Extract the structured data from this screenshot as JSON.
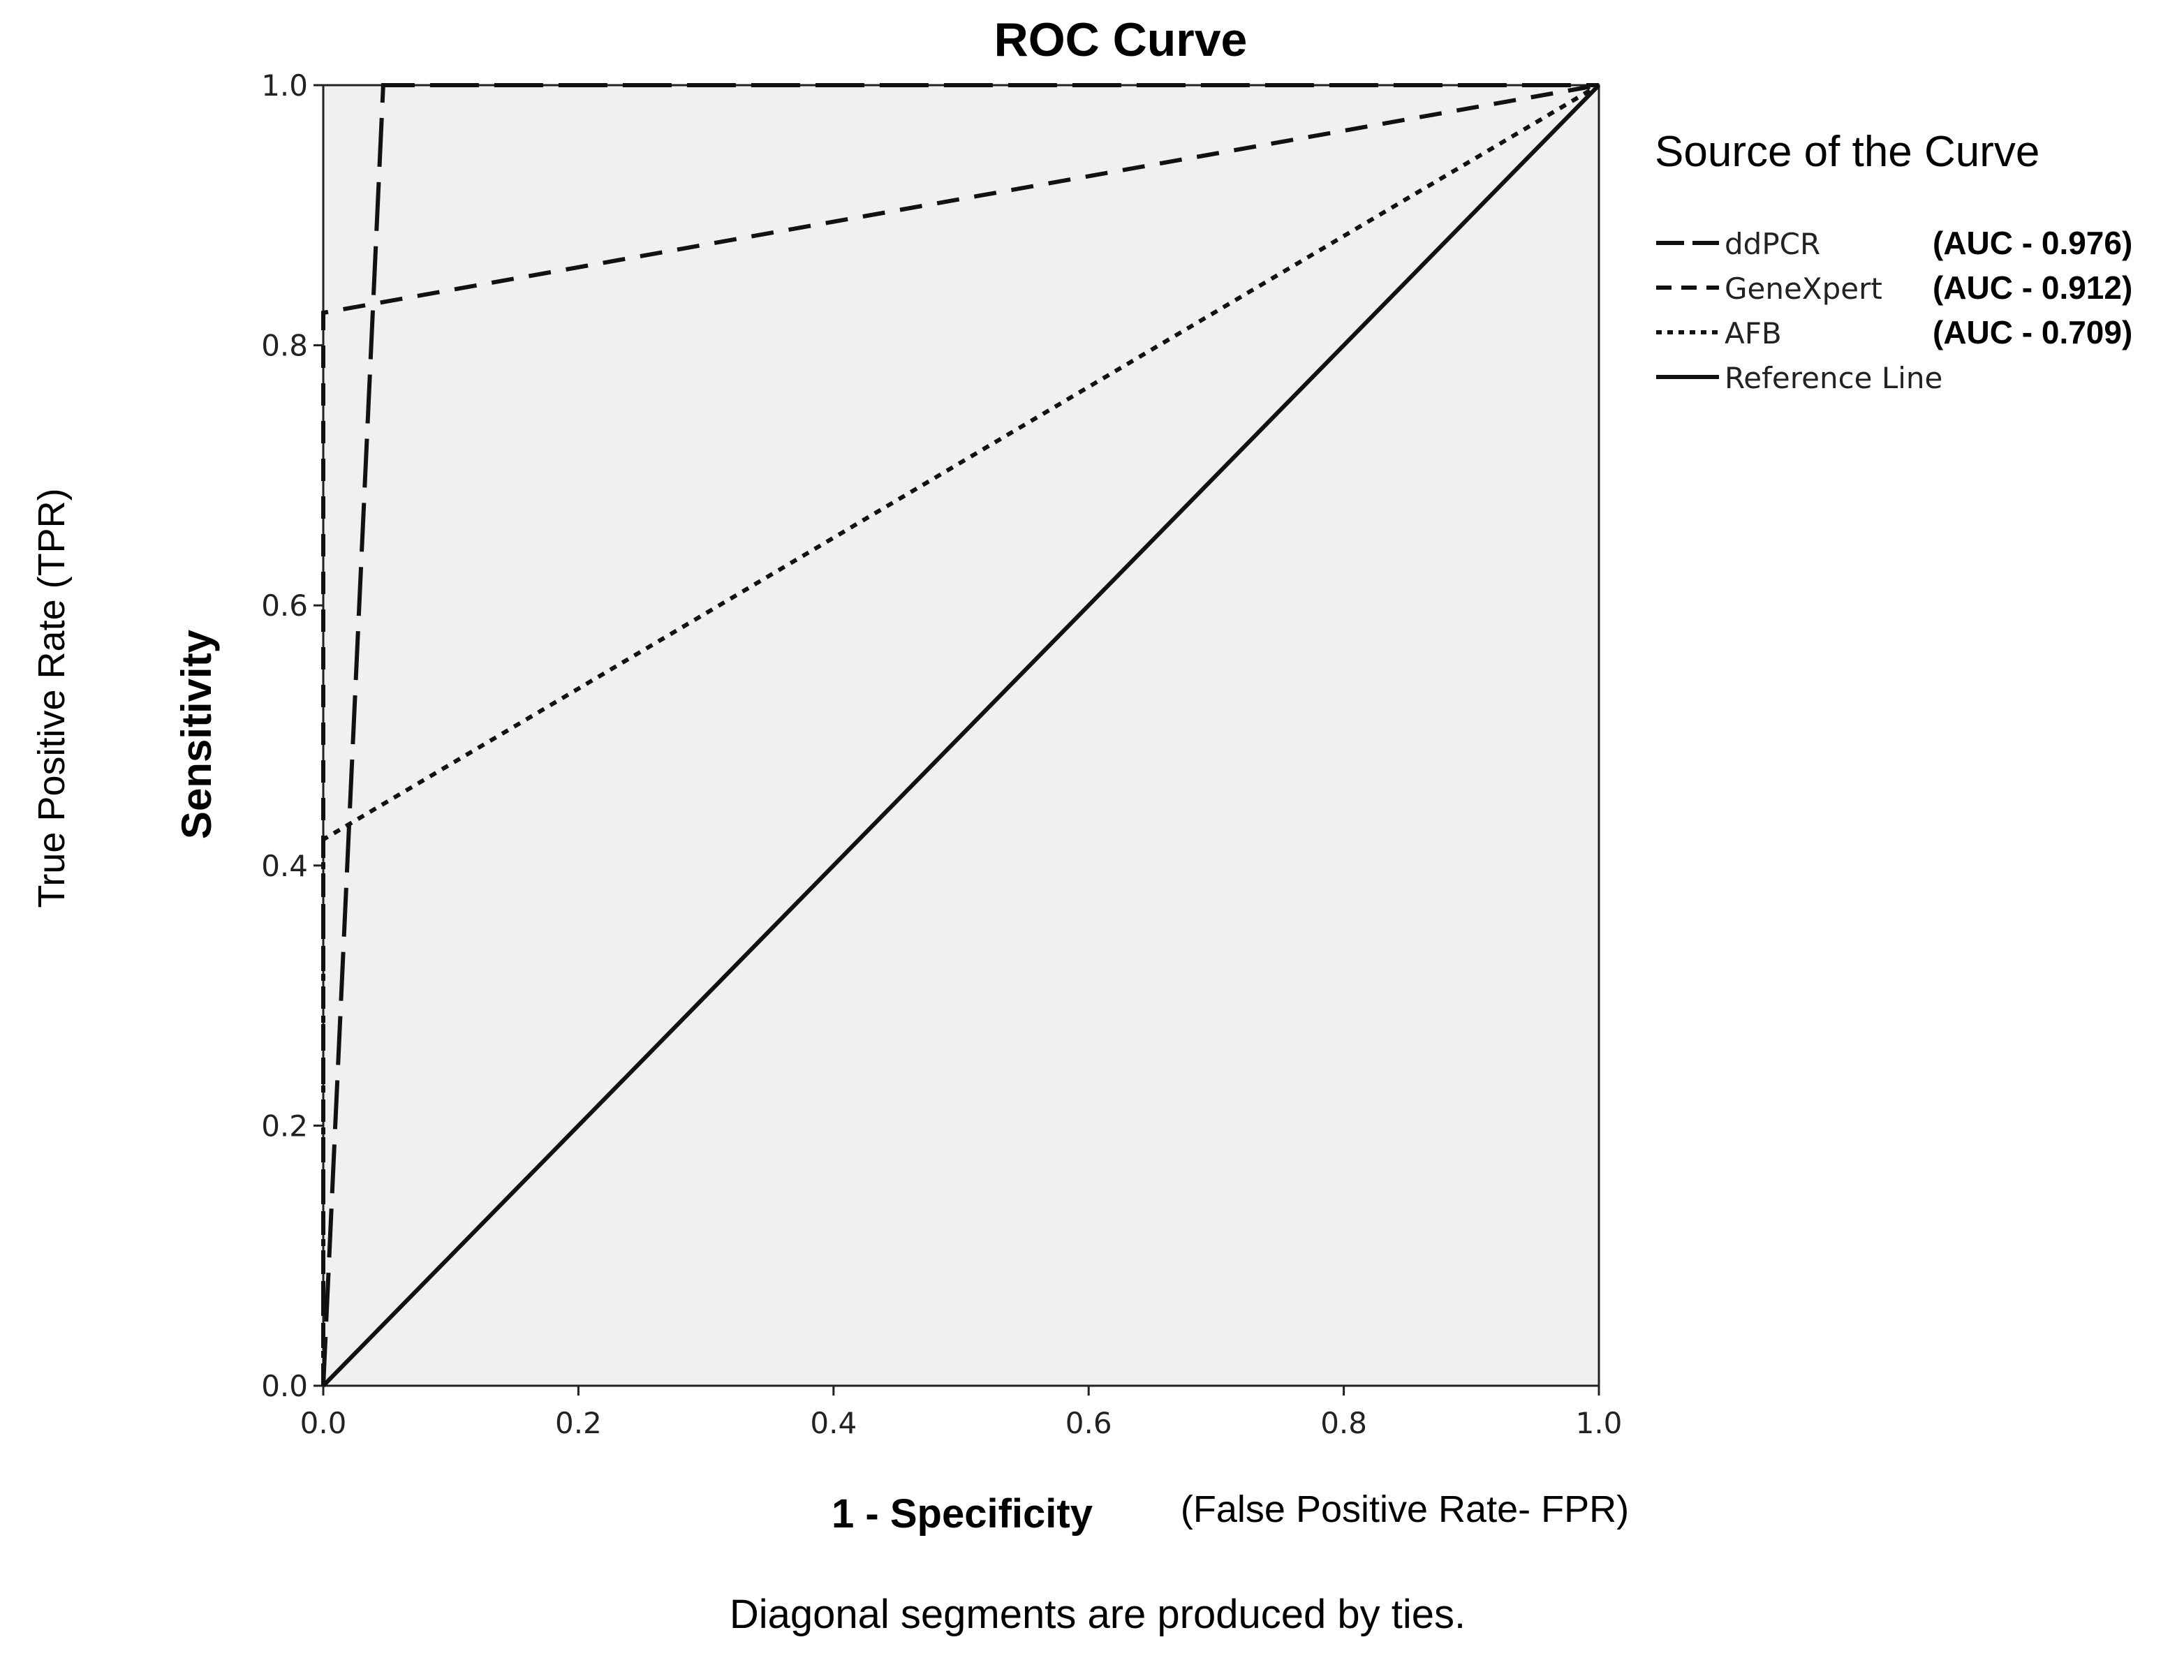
{
  "chart_data": {
    "type": "line",
    "title": "ROC Curve",
    "xlabel": "1 - Specificity",
    "xlabel_note": "(False Positive Rate- FPR)",
    "ylabel": "Sensitivity",
    "ylabel_outer": "True Positive Rate (TPR)",
    "xlim": [
      0,
      1
    ],
    "ylim": [
      0,
      1
    ],
    "xticks": [
      "0.0",
      "0.2",
      "0.4",
      "0.6",
      "0.8",
      "1.0"
    ],
    "yticks": [
      "0.0",
      "0.2",
      "0.4",
      "0.6",
      "0.8",
      "1.0"
    ],
    "grid": false,
    "plot_background": "#f0f0f0",
    "legend": {
      "title": "Source of the Curve",
      "placement": "right"
    },
    "series": [
      {
        "name": "ddPCR",
        "auc_label": "(AUC - 0.976)",
        "style": "long-dash",
        "x": [
          0,
          0.047,
          1
        ],
        "y": [
          0,
          1,
          1
        ]
      },
      {
        "name": "GeneXpert",
        "auc_label": "(AUC - 0.912)",
        "style": "dash",
        "x": [
          0,
          0,
          1
        ],
        "y": [
          0,
          0.825,
          1
        ]
      },
      {
        "name": "AFB",
        "auc_label": "(AUC - 0.709)",
        "style": "dot",
        "x": [
          0,
          0,
          1
        ],
        "y": [
          0,
          0.42,
          1
        ]
      },
      {
        "name": "Reference Line",
        "auc_label": "",
        "style": "solid",
        "x": [
          0,
          1
        ],
        "y": [
          0,
          1
        ]
      }
    ],
    "footnote": "Diagonal segments are produced by ties."
  }
}
